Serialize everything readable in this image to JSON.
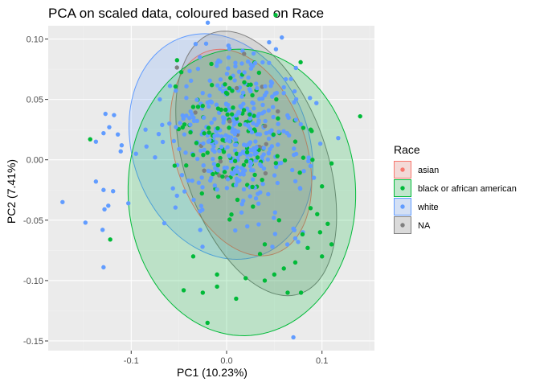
{
  "chart_data": {
    "type": "scatter",
    "title": "PCA on scaled data, coloured based on Race",
    "xlabel": "PC1 (10.23%)",
    "ylabel": "PC2 (7.41%)",
    "xlim": [
      -0.187,
      0.155
    ],
    "ylim": [
      -0.158,
      0.111
    ],
    "xticks": [
      -0.1,
      0.0,
      0.1
    ],
    "xtick_labels": [
      "-0.1",
      "0.0",
      "0.1"
    ],
    "yticks": [
      -0.15,
      -0.1,
      -0.05,
      0.0,
      0.05,
      0.1
    ],
    "ytick_labels": [
      "-0.15",
      "-0.10",
      "-0.05",
      "0.00",
      "0.05",
      "0.10"
    ],
    "grid": true,
    "legend": {
      "title": "Race",
      "placement": "right",
      "entries": [
        "asian",
        "black or african american",
        "white",
        "NA"
      ]
    },
    "colors": {
      "asian": "#F8766D",
      "black or african american": "#00BA38",
      "white": "#619CFF",
      "NA": "#7F7F7F",
      "panel": "#EBEBEB",
      "grid_major": "#FFFFFF",
      "grid_minor": "#F2F2F2"
    },
    "ellipses": [
      {
        "name": "white",
        "cx": -0.006,
        "cy": 0.011,
        "rx": 0.103,
        "ry": 0.086,
        "angle_deg": -40
      },
      {
        "name": "asian",
        "cx": 0.015,
        "cy": 0.006,
        "rx": 0.092,
        "ry": 0.066,
        "angle_deg": -58
      },
      {
        "name": "NA",
        "cx": 0.031,
        "cy": -0.003,
        "rx": 0.118,
        "ry": 0.072,
        "angle_deg": -62
      },
      {
        "name": "black or african american",
        "cx": 0.016,
        "cy": -0.027,
        "rx": 0.12,
        "ry": 0.118,
        "angle_deg": -35
      }
    ],
    "points": {
      "white": [
        [
          -0.148,
          -0.052
        ],
        [
          -0.172,
          -0.035
        ],
        [
          -0.129,
          -0.089
        ],
        [
          -0.128,
          -0.041
        ],
        [
          -0.129,
          -0.025
        ],
        [
          -0.13,
          -0.058
        ],
        [
          -0.137,
          -0.018
        ],
        [
          -0.124,
          -0.038
        ],
        [
          -0.127,
          0.038
        ],
        [
          -0.118,
          0.037
        ],
        [
          -0.123,
          0.027
        ],
        [
          -0.114,
          0.021
        ],
        [
          -0.129,
          0.022
        ],
        [
          -0.11,
          0.012
        ],
        [
          -0.137,
          0.015
        ],
        [
          -0.103,
          -0.036
        ],
        [
          -0.119,
          -0.026
        ],
        [
          -0.111,
          0.007
        ],
        [
          -0.084,
          0.011
        ],
        [
          -0.095,
          0.005
        ],
        [
          -0.085,
          0.025
        ],
        [
          -0.028,
          0.085
        ],
        [
          0.003,
          0.092
        ],
        [
          -0.07,
          0.05
        ],
        [
          0.07,
          -0.147
        ],
        [
          0.117,
          0.018
        ],
        [
          0.072,
          -0.065
        ],
        [
          0.07,
          -0.057
        ],
        [
          0.075,
          -0.068
        ],
        [
          0.08,
          -0.06
        ],
        [
          0.048,
          -0.072
        ],
        [
          -0.06,
          0.03
        ],
        [
          -0.075,
          0.002
        ],
        [
          0.06,
          0.06
        ],
        [
          0.065,
          0.035
        ]
      ],
      "black or african american": [
        [
          -0.143,
          0.017
        ],
        [
          -0.122,
          -0.066
        ],
        [
          0.14,
          0.036
        ],
        [
          0.085,
          -0.073
        ],
        [
          0.106,
          -0.053
        ],
        [
          0.11,
          -0.07
        ],
        [
          0.1,
          -0.08
        ],
        [
          0.098,
          -0.06
        ],
        [
          0.1,
          -0.022
        ],
        [
          0.11,
          -0.003
        ],
        [
          0.09,
          0.0
        ],
        [
          0.06,
          -0.09
        ],
        [
          0.078,
          -0.11
        ],
        [
          0.064,
          -0.11
        ],
        [
          0.04,
          -0.07
        ],
        [
          0.01,
          -0.115
        ],
        [
          -0.01,
          -0.105
        ],
        [
          -0.02,
          -0.135
        ],
        [
          -0.045,
          -0.108
        ],
        [
          -0.025,
          -0.11
        ],
        [
          0.05,
          -0.095
        ],
        [
          0.035,
          -0.078
        ],
        [
          -0.035,
          -0.08
        ],
        [
          -0.01,
          -0.095
        ],
        [
          0.02,
          -0.098
        ],
        [
          0.04,
          -0.1
        ],
        [
          0.072,
          -0.085
        ],
        [
          0.055,
          -0.05
        ],
        [
          0.088,
          -0.04
        ],
        [
          0.095,
          -0.045
        ]
      ]
    }
  }
}
